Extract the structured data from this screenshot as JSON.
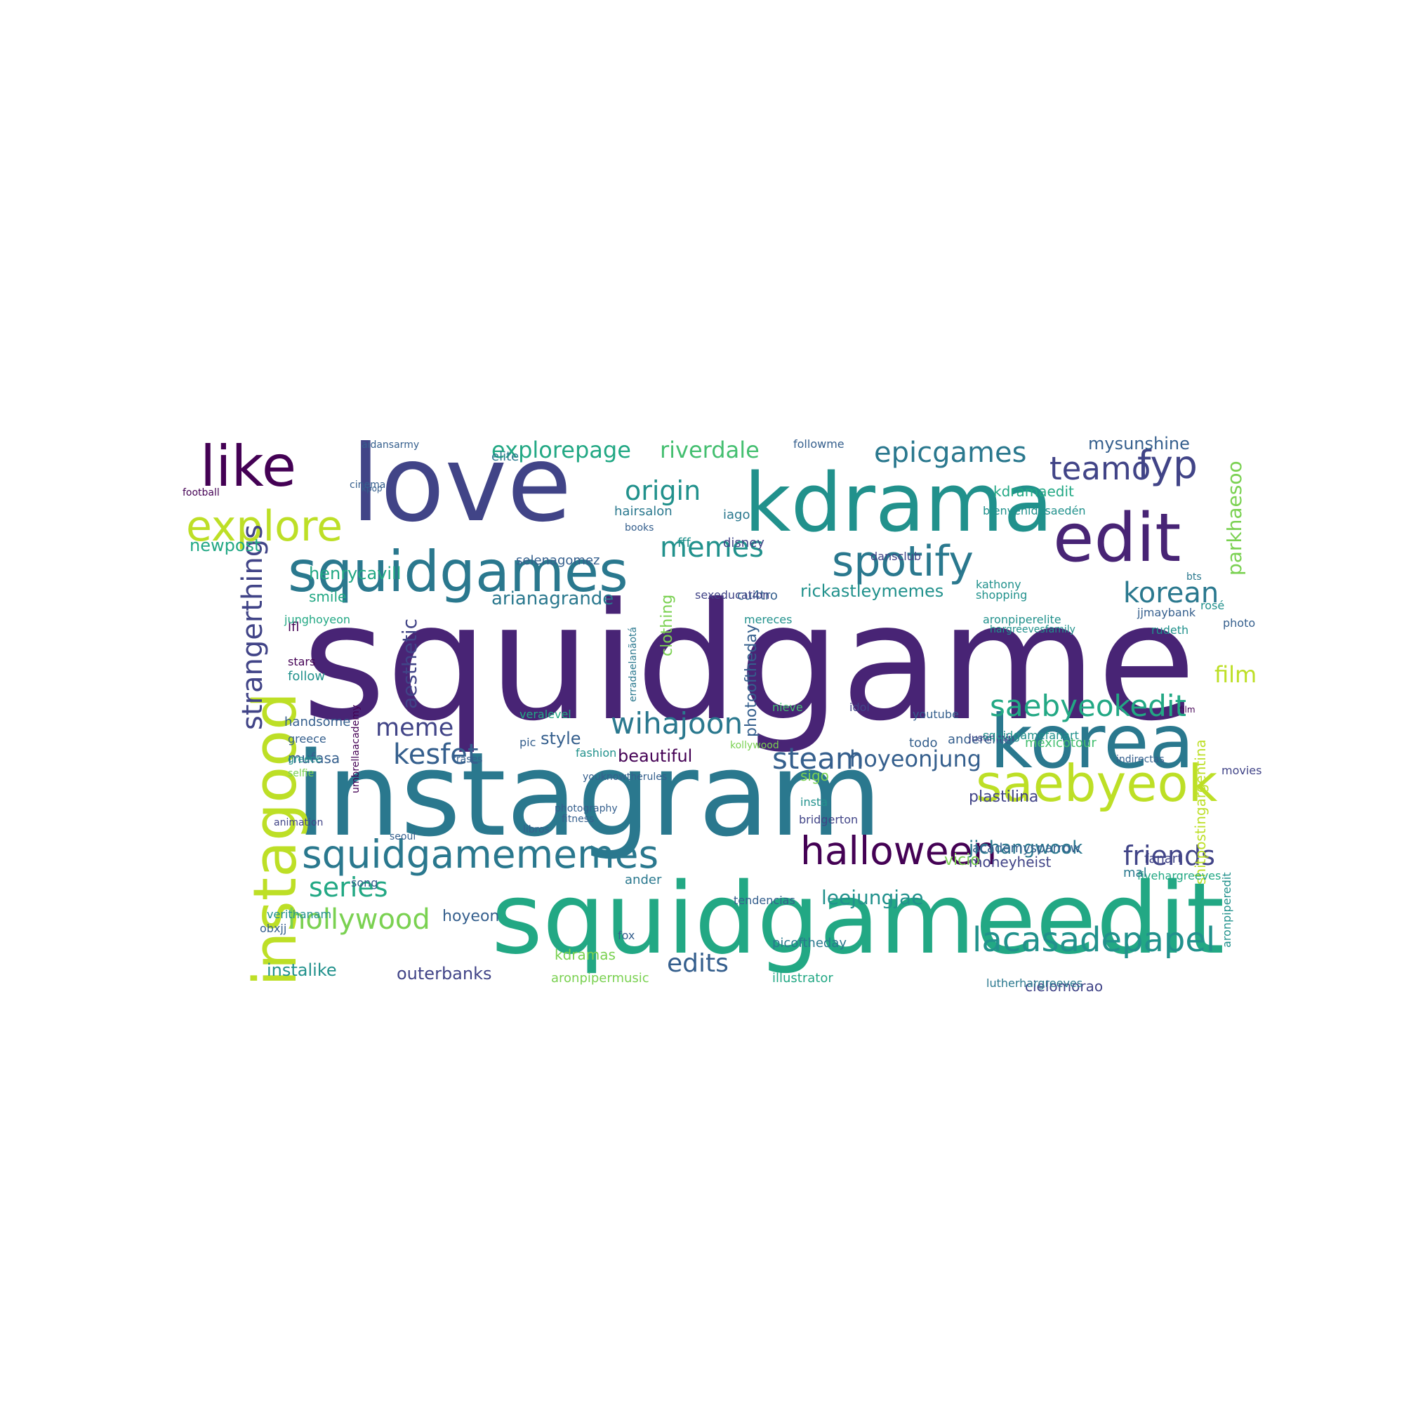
{
  "colors": {
    "c0": "#440154",
    "c1": "#482475",
    "c2": "#414487",
    "c3": "#355f8d",
    "c4": "#2a788e",
    "c5": "#21918c",
    "c6": "#22a884",
    "c7": "#44bf70",
    "c8": "#7ad151",
    "c9": "#bddf26",
    "c10": "#fde725"
  },
  "words": [
    "squidgame",
    "instagram",
    "squidgameedit",
    "love",
    "kdrama",
    "edit",
    "korea",
    "instagood",
    "squidgames",
    "saebyeok",
    "like",
    "explore",
    "spotify",
    "halloween",
    "squidgamememes",
    "fyp",
    "saebyeokedit",
    "lacasadepapel",
    "epicgames",
    "teamo",
    "origin",
    "memes",
    "strangerthings",
    "korean",
    "wihajoon",
    "steam",
    "hoyeonjung",
    "explorepage",
    "riverdale",
    "kesfet",
    "meme",
    "friends",
    "hollywood",
    "series",
    "leejungjae",
    "edits",
    "film",
    "parkhaesoo",
    "jichangwook",
    "mysunshine",
    "rickastleymemes",
    "arianagrande",
    "aesthetic",
    "clothing",
    "photooftheday",
    "newpost",
    "henrycavill",
    "smile",
    "outerbanks",
    "instalike",
    "kdramaedit",
    "style",
    "beautiful",
    "plastilina",
    "aronpipermusic",
    "illustrator",
    "moneyheist",
    "academysparrow",
    "vicio",
    "cielomorao",
    "lutherhargreeves",
    "aronpiperedit",
    "shitpostingargentina",
    "fanart",
    "fivehargreeves",
    "mal",
    "kdramas",
    "picoftheday",
    "tendencias",
    "hoyeon",
    "verithanam",
    "obxjj",
    "mufasa",
    "handsome",
    "greece",
    "selfie",
    "follow",
    "stars",
    "lfl",
    "junghoyeon",
    "dansclub",
    "aronpiperelite",
    "hargreevesfamily",
    "rudeth",
    "jjmaybank",
    "disney",
    "fff",
    "books",
    "hairsalon",
    "iago",
    "cu4tro",
    "sexeducation",
    "mereces",
    "todo",
    "youtube",
    "anderelite",
    "mexicotour",
    "nieve",
    "idol",
    "veralevel",
    "elite",
    "followme",
    "aidansarmy",
    "cinema",
    "football",
    "kpop",
    "movies",
    "photo",
    "rosé",
    "bts",
    "insta",
    "bridgerton",
    "sigo",
    "ander",
    "fox",
    "song",
    "pic",
    "fashion",
    "frases",
    "greece",
    "justinmin",
    "indirectas",
    "animation",
    "seoul",
    "libros",
    "fitness",
    "photography",
    "youknowtherules",
    "squidgamefanart",
    "kollywood",
    "erradaelanãotá",
    "umbrellaacademy",
    "selenagomez",
    "bienvenidosaedén",
    "shopping",
    "kathony",
    "film"
  ]
}
